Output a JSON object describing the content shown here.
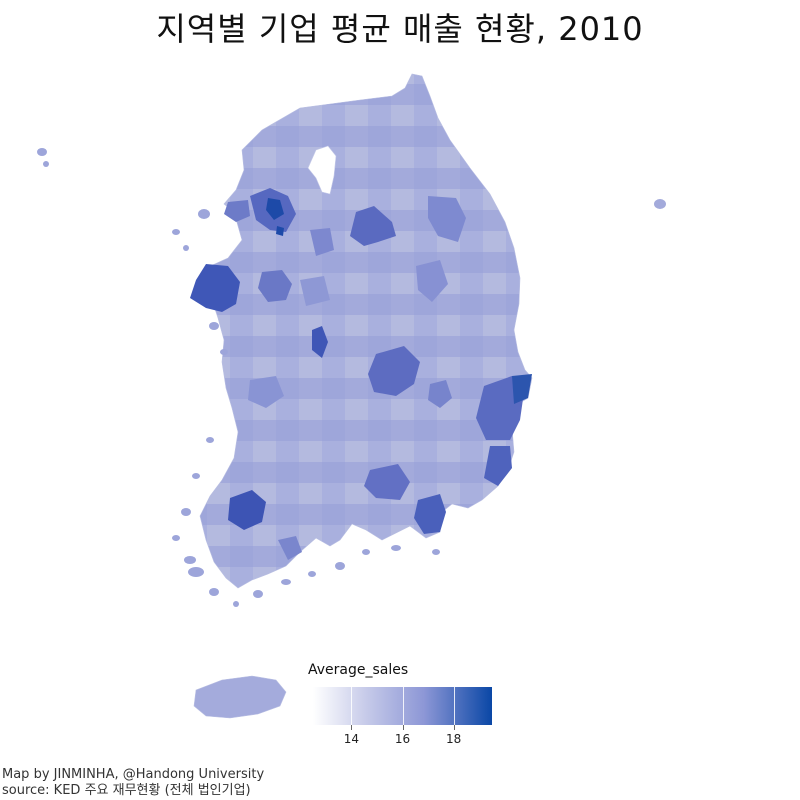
{
  "title": "지역별 기업 평균 매출 현황,  2010",
  "legend": {
    "title": "Average_sales",
    "ticks": [
      {
        "label": "14",
        "value": 14
      },
      {
        "label": "16",
        "value": 16
      },
      {
        "label": "18",
        "value": 18
      }
    ],
    "range": [
      12.5,
      19.5
    ],
    "colors": {
      "low": "#ffffff",
      "mid": "#8d97d6",
      "high": "#0a47a6"
    }
  },
  "captions": {
    "credit": "Map by JINMINHA, @Handong University",
    "source": "source: KED 주요 재무현황 (전체 법인기업)"
  }
}
